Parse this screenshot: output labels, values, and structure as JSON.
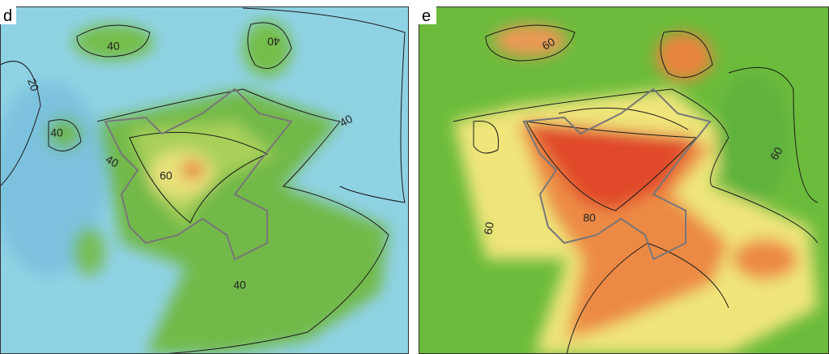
{
  "panels": [
    {
      "label": "d",
      "contour_labels": [
        40,
        40,
        20,
        40,
        40,
        40,
        60,
        40
      ]
    },
    {
      "label": "e",
      "contour_labels": [
        60,
        60,
        80,
        60
      ]
    }
  ]
}
